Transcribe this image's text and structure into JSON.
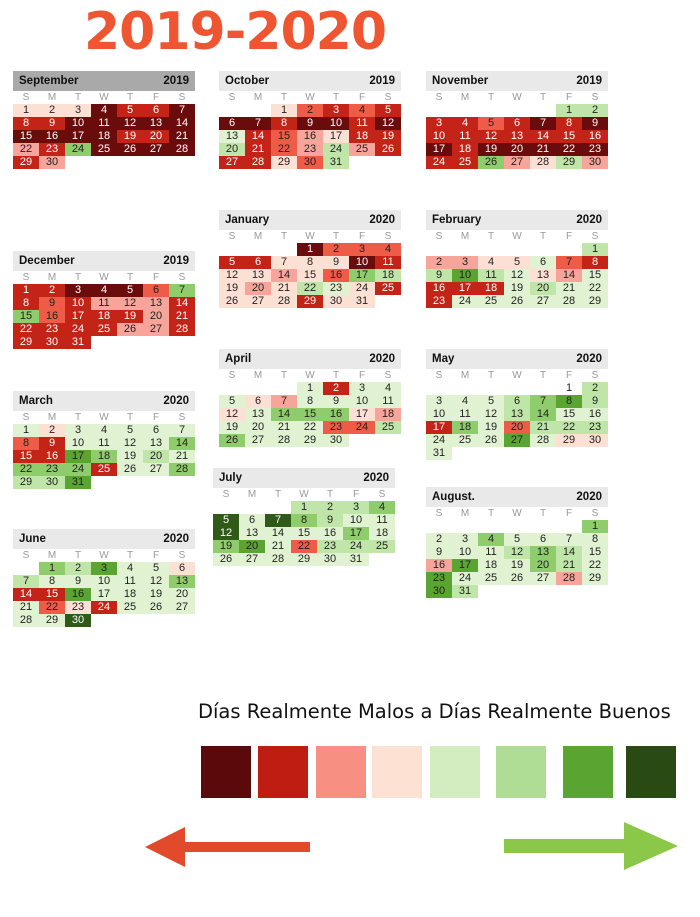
{
  "title": "2019-2020",
  "title_color": "#ee5530",
  "day_headers": [
    "S",
    "M",
    "T",
    "W",
    "T",
    "F",
    "S"
  ],
  "legend": {
    "label": "Días Realmente Malos a Días Realmente Buenos",
    "colors": [
      "#5a0a0a",
      "#c01d12",
      "#f88f83",
      "#fde2d3",
      "#d4edc0",
      "#b0dd95",
      "#5aa532",
      "#2a4a14"
    ],
    "arrow_left_color": "#e34a2b",
    "arrow_right_color": "#8bc84a"
  },
  "level_colors": {
    "0": "#ffffff",
    "1": "#6b0c0c",
    "2": "#c42417",
    "3": "#ee5b46",
    "4": "#f7a59b",
    "5": "#fde0d4",
    "6": "#e0f2d2",
    "7": "#bfe6a8",
    "8": "#8fcc6b",
    "9": "#5aa532",
    "10": "#2f5a18"
  },
  "chart_data": {
    "type": "heatmap",
    "title": "2019-2020",
    "levels": "1 = darkest red (really bad day) ... 10 = darkest green (really good day); 0 = no color",
    "months": [
      {
        "name": "September",
        "year": "2019",
        "start_dow": 0,
        "days": 30,
        "selected": true,
        "levels": [
          5,
          5,
          5,
          1,
          2,
          2,
          1,
          2,
          2,
          1,
          1,
          1,
          1,
          1,
          1,
          1,
          1,
          1,
          2,
          2,
          1,
          4,
          2,
          8,
          1,
          1,
          1,
          1,
          2,
          4
        ]
      },
      {
        "name": "October",
        "year": "2019",
        "start_dow": 2,
        "days": 31,
        "levels": [
          5,
          3,
          2,
          3,
          2,
          1,
          1,
          2,
          1,
          1,
          2,
          1,
          6,
          2,
          3,
          4,
          5,
          2,
          2,
          7,
          2,
          3,
          4,
          7,
          4,
          2,
          2,
          2,
          5,
          3,
          7
        ]
      },
      {
        "name": "November",
        "year": "2019",
        "start_dow": 5,
        "days": 30,
        "levels": [
          7,
          7,
          2,
          2,
          3,
          2,
          1,
          2,
          1,
          2,
          2,
          2,
          2,
          2,
          2,
          2,
          1,
          2,
          1,
          1,
          1,
          1,
          1,
          2,
          2,
          8,
          4,
          5,
          7,
          4
        ]
      },
      {
        "name": "December",
        "year": "2019",
        "start_dow": 0,
        "days": 31,
        "levels": [
          2,
          2,
          1,
          1,
          1,
          3,
          8,
          2,
          3,
          2,
          4,
          4,
          4,
          2,
          8,
          3,
          2,
          2,
          2,
          4,
          2,
          2,
          2,
          2,
          2,
          4,
          4,
          2,
          2,
          2,
          2
        ]
      },
      {
        "name": "January",
        "year": "2020",
        "start_dow": 3,
        "days": 31,
        "levels": [
          1,
          3,
          3,
          3,
          2,
          2,
          5,
          5,
          5,
          1,
          2,
          5,
          5,
          4,
          5,
          3,
          8,
          7,
          5,
          4,
          5,
          7,
          6,
          5,
          2,
          5,
          5,
          5,
          2,
          5,
          5
        ]
      },
      {
        "name": "February",
        "year": "2020",
        "start_dow": 6,
        "days": 29,
        "levels": [
          7,
          4,
          4,
          5,
          5,
          6,
          3,
          2,
          7,
          9,
          7,
          6,
          5,
          4,
          6,
          2,
          2,
          2,
          6,
          7,
          6,
          6,
          2,
          6,
          6,
          6,
          6,
          6,
          6
        ]
      },
      {
        "name": "March",
        "year": "2020",
        "start_dow": 0,
        "days": 31,
        "levels": [
          6,
          5,
          6,
          6,
          6,
          6,
          6,
          3,
          2,
          6,
          6,
          6,
          6,
          8,
          2,
          2,
          9,
          8,
          6,
          7,
          6,
          8,
          8,
          8,
          2,
          6,
          6,
          8,
          7,
          7,
          9
        ]
      },
      {
        "name": "April",
        "year": "2020",
        "start_dow": 3,
        "days": 30,
        "levels": [
          6,
          2,
          6,
          6,
          6,
          5,
          4,
          6,
          6,
          6,
          6,
          5,
          6,
          8,
          8,
          8,
          5,
          4,
          6,
          6,
          6,
          6,
          3,
          3,
          7,
          8,
          6,
          6,
          6,
          6
        ]
      },
      {
        "name": "May",
        "year": "2020",
        "start_dow": 5,
        "days": 31,
        "levels": [
          0,
          7,
          6,
          6,
          6,
          7,
          8,
          9,
          7,
          6,
          6,
          6,
          7,
          8,
          6,
          6,
          2,
          8,
          6,
          3,
          7,
          7,
          7,
          6,
          6,
          6,
          9,
          6,
          5,
          5,
          6
        ]
      },
      {
        "name": "June",
        "year": "2020",
        "start_dow": 1,
        "days": 30,
        "levels": [
          8,
          7,
          9,
          6,
          6,
          5,
          7,
          6,
          6,
          6,
          6,
          6,
          8,
          2,
          2,
          9,
          6,
          6,
          6,
          6,
          6,
          3,
          5,
          2,
          6,
          6,
          6,
          6,
          6,
          10
        ]
      },
      {
        "name": "July",
        "year": "2020",
        "start_dow": 3,
        "days": 31,
        "levels": [
          7,
          7,
          7,
          8,
          10,
          6,
          10,
          8,
          7,
          6,
          6,
          10,
          6,
          6,
          6,
          6,
          8,
          6,
          8,
          9,
          6,
          3,
          7,
          7,
          7,
          6,
          6,
          6,
          6,
          6,
          6
        ]
      },
      {
        "name": "August.",
        "year": "2020",
        "start_dow": 6,
        "days": 31,
        "levels": [
          8,
          6,
          6,
          8,
          6,
          6,
          6,
          6,
          6,
          6,
          6,
          7,
          8,
          7,
          6,
          4,
          9,
          6,
          6,
          8,
          7,
          6,
          9,
          6,
          6,
          6,
          6,
          4,
          6,
          9,
          7
        ]
      }
    ]
  }
}
